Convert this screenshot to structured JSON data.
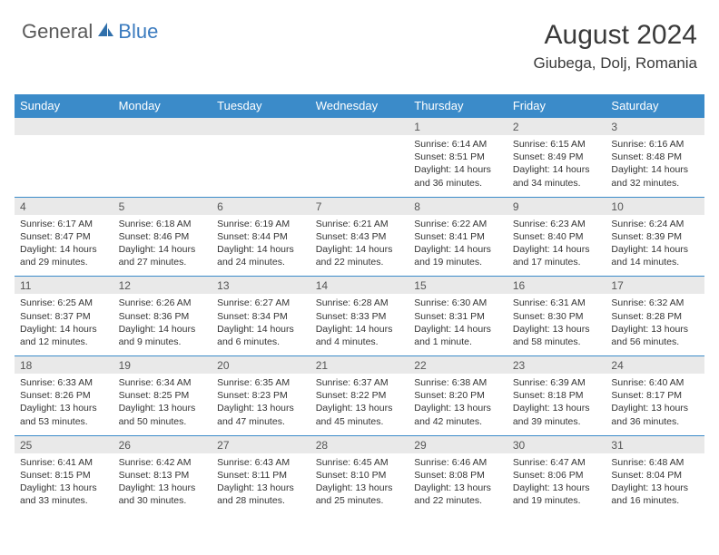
{
  "logo": {
    "part1": "General",
    "part2": "Blue",
    "brand_color": "#3b7bbf",
    "gray": "#5a5a5a"
  },
  "header": {
    "month_title": "August 2024",
    "location": "Giubega, Dolj, Romania"
  },
  "colors": {
    "header_bar": "#3b8bc9",
    "daynum_bg": "#e9e9e9",
    "divider": "#3b8bc9",
    "text": "#333333",
    "text_muted": "#555555",
    "white": "#ffffff"
  },
  "day_names": [
    "Sunday",
    "Monday",
    "Tuesday",
    "Wednesday",
    "Thursday",
    "Friday",
    "Saturday"
  ],
  "weeks": [
    [
      null,
      null,
      null,
      null,
      {
        "n": "1",
        "sr": "6:14 AM",
        "ss": "8:51 PM",
        "dl": "14 hours and 36 minutes."
      },
      {
        "n": "2",
        "sr": "6:15 AM",
        "ss": "8:49 PM",
        "dl": "14 hours and 34 minutes."
      },
      {
        "n": "3",
        "sr": "6:16 AM",
        "ss": "8:48 PM",
        "dl": "14 hours and 32 minutes."
      }
    ],
    [
      {
        "n": "4",
        "sr": "6:17 AM",
        "ss": "8:47 PM",
        "dl": "14 hours and 29 minutes."
      },
      {
        "n": "5",
        "sr": "6:18 AM",
        "ss": "8:46 PM",
        "dl": "14 hours and 27 minutes."
      },
      {
        "n": "6",
        "sr": "6:19 AM",
        "ss": "8:44 PM",
        "dl": "14 hours and 24 minutes."
      },
      {
        "n": "7",
        "sr": "6:21 AM",
        "ss": "8:43 PM",
        "dl": "14 hours and 22 minutes."
      },
      {
        "n": "8",
        "sr": "6:22 AM",
        "ss": "8:41 PM",
        "dl": "14 hours and 19 minutes."
      },
      {
        "n": "9",
        "sr": "6:23 AM",
        "ss": "8:40 PM",
        "dl": "14 hours and 17 minutes."
      },
      {
        "n": "10",
        "sr": "6:24 AM",
        "ss": "8:39 PM",
        "dl": "14 hours and 14 minutes."
      }
    ],
    [
      {
        "n": "11",
        "sr": "6:25 AM",
        "ss": "8:37 PM",
        "dl": "14 hours and 12 minutes."
      },
      {
        "n": "12",
        "sr": "6:26 AM",
        "ss": "8:36 PM",
        "dl": "14 hours and 9 minutes."
      },
      {
        "n": "13",
        "sr": "6:27 AM",
        "ss": "8:34 PM",
        "dl": "14 hours and 6 minutes."
      },
      {
        "n": "14",
        "sr": "6:28 AM",
        "ss": "8:33 PM",
        "dl": "14 hours and 4 minutes."
      },
      {
        "n": "15",
        "sr": "6:30 AM",
        "ss": "8:31 PM",
        "dl": "14 hours and 1 minute."
      },
      {
        "n": "16",
        "sr": "6:31 AM",
        "ss": "8:30 PM",
        "dl": "13 hours and 58 minutes."
      },
      {
        "n": "17",
        "sr": "6:32 AM",
        "ss": "8:28 PM",
        "dl": "13 hours and 56 minutes."
      }
    ],
    [
      {
        "n": "18",
        "sr": "6:33 AM",
        "ss": "8:26 PM",
        "dl": "13 hours and 53 minutes."
      },
      {
        "n": "19",
        "sr": "6:34 AM",
        "ss": "8:25 PM",
        "dl": "13 hours and 50 minutes."
      },
      {
        "n": "20",
        "sr": "6:35 AM",
        "ss": "8:23 PM",
        "dl": "13 hours and 47 minutes."
      },
      {
        "n": "21",
        "sr": "6:37 AM",
        "ss": "8:22 PM",
        "dl": "13 hours and 45 minutes."
      },
      {
        "n": "22",
        "sr": "6:38 AM",
        "ss": "8:20 PM",
        "dl": "13 hours and 42 minutes."
      },
      {
        "n": "23",
        "sr": "6:39 AM",
        "ss": "8:18 PM",
        "dl": "13 hours and 39 minutes."
      },
      {
        "n": "24",
        "sr": "6:40 AM",
        "ss": "8:17 PM",
        "dl": "13 hours and 36 minutes."
      }
    ],
    [
      {
        "n": "25",
        "sr": "6:41 AM",
        "ss": "8:15 PM",
        "dl": "13 hours and 33 minutes."
      },
      {
        "n": "26",
        "sr": "6:42 AM",
        "ss": "8:13 PM",
        "dl": "13 hours and 30 minutes."
      },
      {
        "n": "27",
        "sr": "6:43 AM",
        "ss": "8:11 PM",
        "dl": "13 hours and 28 minutes."
      },
      {
        "n": "28",
        "sr": "6:45 AM",
        "ss": "8:10 PM",
        "dl": "13 hours and 25 minutes."
      },
      {
        "n": "29",
        "sr": "6:46 AM",
        "ss": "8:08 PM",
        "dl": "13 hours and 22 minutes."
      },
      {
        "n": "30",
        "sr": "6:47 AM",
        "ss": "8:06 PM",
        "dl": "13 hours and 19 minutes."
      },
      {
        "n": "31",
        "sr": "6:48 AM",
        "ss": "8:04 PM",
        "dl": "13 hours and 16 minutes."
      }
    ]
  ],
  "labels": {
    "sunrise": "Sunrise: ",
    "sunset": "Sunset: ",
    "daylight": "Daylight: "
  }
}
